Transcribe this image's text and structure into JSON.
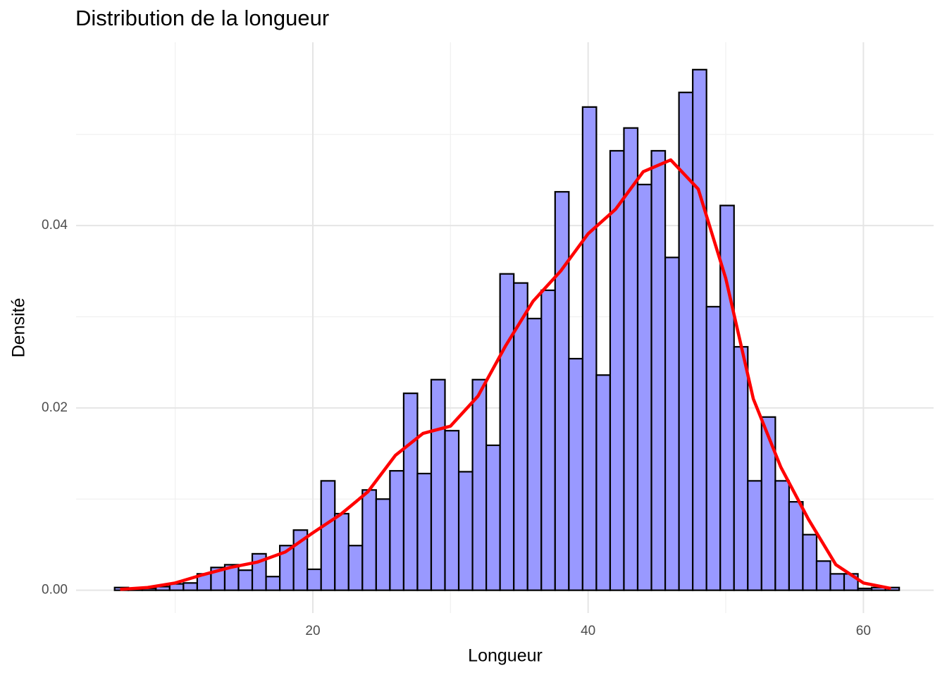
{
  "chart_data": {
    "type": "histogram",
    "title": "Distribution de la longueur",
    "xlabel": "Longueur",
    "ylabel": "Densité",
    "bins": [
      5.6,
      6.6,
      7.6,
      8.6,
      9.6,
      10.6,
      11.6,
      12.6,
      13.6,
      14.6,
      15.6,
      16.6,
      17.6,
      18.6,
      19.6,
      20.6,
      21.6,
      22.6,
      23.6,
      24.6,
      25.6,
      26.6,
      27.6,
      28.6,
      29.6,
      30.6,
      31.6,
      32.6,
      33.6,
      34.6,
      35.6,
      36.6,
      37.6,
      38.6,
      39.6,
      40.6,
      41.6,
      42.6,
      43.6,
      44.6,
      45.6,
      46.6,
      47.6,
      48.6,
      49.6,
      50.6,
      51.6,
      52.6,
      53.6,
      54.6,
      55.6,
      56.6,
      57.6,
      58.6,
      59.6,
      60.6,
      61.6,
      62.6
    ],
    "values": [
      0.0003,
      0.0002,
      0.0002,
      0.0004,
      0.0007,
      0.0008,
      0.0018,
      0.0025,
      0.0028,
      0.0022,
      0.004,
      0.0015,
      0.0049,
      0.0066,
      0.0023,
      0.012,
      0.0084,
      0.0049,
      0.011,
      0.01,
      0.0131,
      0.0216,
      0.0128,
      0.0231,
      0.0175,
      0.013,
      0.0231,
      0.0159,
      0.0347,
      0.0337,
      0.0298,
      0.0329,
      0.0437,
      0.0254,
      0.053,
      0.0236,
      0.0482,
      0.0507,
      0.0445,
      0.0482,
      0.0365,
      0.0546,
      0.0571,
      0.0311,
      0.0422,
      0.0267,
      0.012,
      0.019,
      0.012,
      0.0097,
      0.0061,
      0.0032,
      0.0018,
      0.0018,
      0.0002,
      0.0003,
      0.0003
    ],
    "color": "#9999ff",
    "edgecolor": "#000000",
    "density": {
      "color": "#ff0000",
      "x": [
        6,
        8,
        10,
        12,
        14,
        16,
        18,
        20,
        22,
        24,
        26,
        28,
        30,
        32,
        34,
        36,
        38,
        40,
        42,
        44,
        46,
        48,
        50,
        52,
        54,
        56,
        58,
        60,
        62
      ],
      "y": [
        0.0001,
        0.0003,
        0.0008,
        0.0017,
        0.0025,
        0.0031,
        0.0042,
        0.0063,
        0.0083,
        0.0108,
        0.0148,
        0.0172,
        0.018,
        0.0213,
        0.0268,
        0.0317,
        0.035,
        0.0391,
        0.0418,
        0.0459,
        0.0472,
        0.044,
        0.0342,
        0.021,
        0.0135,
        0.0078,
        0.0028,
        0.0008,
        0.0002
      ]
    },
    "xlim": [
      2.8,
      65.1
    ],
    "ylim": [
      -0.0025,
      0.0601
    ],
    "xticks": [
      20,
      40,
      60
    ],
    "xticks_minor": [
      10,
      30,
      50
    ],
    "yticks": [
      {
        "value": 0,
        "label": "0.00"
      },
      {
        "value": 0.02,
        "label": "0.02"
      },
      {
        "value": 0.04,
        "label": "0.04"
      }
    ],
    "yticks_minor": [
      0.01,
      0.03,
      0.05
    ],
    "grid": true
  }
}
